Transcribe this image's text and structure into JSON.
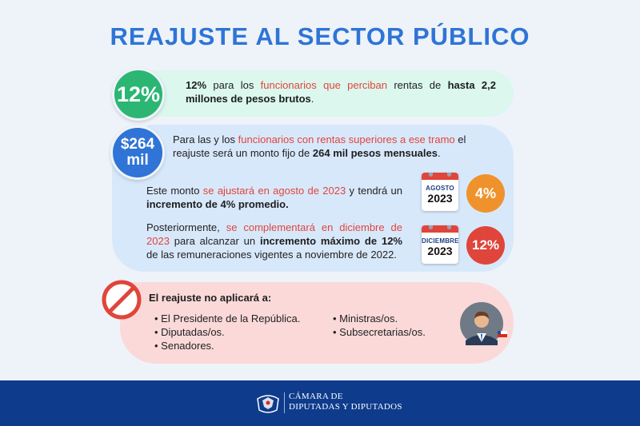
{
  "title": "REAJUSTE AL SECTOR PÚBLICO",
  "card1": {
    "badge": "12%",
    "t1": "12%",
    "t2": " para los ",
    "t3": "funcionarios que perciban",
    "t4": " rentas de ",
    "t5": "hasta 2,2 millones de pesos brutos",
    "t6": "."
  },
  "card2": {
    "badge_line1": "$264",
    "badge_line2": "mil",
    "t1": "Para las y los ",
    "t2": "funcionarios con rentas superiores a ese tramo",
    "t3": " el reajuste será un monto fijo de ",
    "t4": "264 mil pesos mensuales",
    "t5": ".",
    "p2a": "Este monto ",
    "p2b": "se ajustará en agosto de 2023",
    "p2c": " y tendrá un ",
    "p2d": "incremento de 4% promedio.",
    "p3a": "Posteriormente, ",
    "p3b": "se complementará en diciembre de 2023",
    "p3c": " para alcanzar un ",
    "p3d": "incremento máximo de 12%",
    "p3e": " de las remuneraciones vigentes a noviembre de 2022.",
    "cal1_month": "AGOSTO",
    "cal1_year": "2023",
    "cal2_month": "DICIEMBRE",
    "cal2_year": "2023",
    "badge_4": "4%",
    "badge_12": "12%"
  },
  "card3": {
    "title": "El reajuste no aplicará a:",
    "col1": [
      "• El Presidente de la República.",
      "• Diputadas/os.",
      "• Senadores."
    ],
    "col2": [
      "• Ministras/os.",
      "• Subsecretarias/os."
    ]
  },
  "footer": {
    "line1": "CÁMARA DE",
    "line2": "DIPUTADAS Y DIPUTADOS"
  },
  "colors": {
    "title": "#2f74d6",
    "green": "#2bb673",
    "blue": "#2f74d6",
    "orange": "#f0922c",
    "red": "#e0453b",
    "footer": "#0e3b8c"
  },
  "icons": [
    "no-entry-icon",
    "calendar-icon",
    "person-icon",
    "flag-icon",
    "emblem-icon"
  ]
}
